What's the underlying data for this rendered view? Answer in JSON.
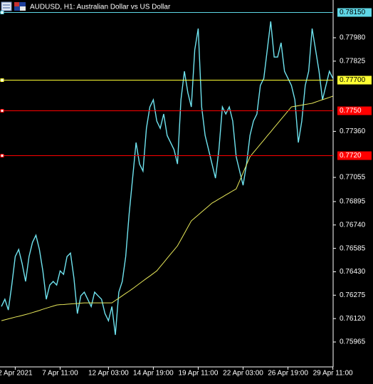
{
  "chart_data": {
    "type": "line",
    "title": "AUDUSD, H1:  Australian Dollar vs US Dollar",
    "categories": [
      null,
      null,
      null,
      null,
      "2 Apr 2021",
      null,
      null,
      null,
      null,
      null,
      null,
      null,
      null,
      null,
      null,
      null,
      null,
      "7 Apr 11:00",
      null,
      null,
      null,
      null,
      null,
      null,
      null,
      null,
      null,
      null,
      null,
      null,
      null,
      "12 Apr 03:00",
      null,
      null,
      null,
      null,
      null,
      null,
      null,
      null,
      null,
      null,
      null,
      null,
      "14 Apr 19:00",
      null,
      null,
      null,
      null,
      null,
      null,
      null,
      null,
      null,
      null,
      null,
      null,
      "19 Apr 11:00",
      null,
      null,
      null,
      null,
      null,
      null,
      null,
      null,
      null,
      null,
      null,
      null,
      "22 Apr 03:00",
      null,
      null,
      null,
      null,
      null,
      null,
      null,
      null,
      null,
      null,
      null,
      null,
      "26 Apr 19:00",
      null,
      null,
      null,
      null,
      null,
      null,
      null,
      null,
      null,
      null,
      null,
      null,
      "29 Apr 11:00"
    ],
    "series": [
      {
        "color": "#6fe3ef",
        "values": [
          0.762,
          0.76248,
          0.76177,
          0.76342,
          0.76531,
          0.76578,
          0.76484,
          0.76366,
          0.76531,
          0.76625,
          0.76672,
          0.76578,
          0.76436,
          0.76248,
          0.76342,
          0.76366,
          0.76342,
          0.76436,
          0.76413,
          0.76531,
          0.76554,
          0.76389,
          0.76153,
          0.76271,
          0.76295,
          0.76248,
          0.762,
          0.76295,
          0.76271,
          0.76248,
          0.76153,
          0.76106,
          0.762,
          0.76012,
          0.76295,
          0.76366,
          0.76531,
          0.76814,
          0.7705,
          0.77286,
          0.77144,
          0.77097,
          0.7738,
          0.77522,
          0.77569,
          0.77428,
          0.7738,
          0.77475,
          0.77333,
          0.77286,
          0.77239,
          0.77144,
          0.77569,
          0.77758,
          0.77616,
          0.77522,
          0.779,
          0.78041,
          0.77522,
          0.77333,
          0.77239,
          0.77144,
          0.7705,
          0.77239,
          0.77522,
          0.77475,
          0.77522,
          0.77428,
          0.77192,
          0.77097,
          0.77003,
          0.77144,
          0.77333,
          0.77428,
          0.77475,
          0.77664,
          0.77711,
          0.779,
          0.78088,
          0.77852,
          0.77852,
          0.77947,
          0.77758,
          0.77711,
          0.77664,
          0.77569,
          0.77286,
          0.77428,
          0.77664,
          0.77758,
          0.78041,
          0.779,
          0.77758,
          0.77569,
          0.77664,
          0.77758,
          0.77711
        ]
      },
      {
        "color": "#e8e85a",
        "values": [
          0.76106,
          0.76112,
          0.76118,
          0.76124,
          0.7613,
          0.76135,
          0.76141,
          0.76147,
          0.76153,
          0.7616,
          0.76167,
          0.76174,
          0.76182,
          0.76189,
          0.76196,
          0.76203,
          0.7621,
          0.76212,
          0.76213,
          0.76215,
          0.76217,
          0.76219,
          0.7622,
          0.76222,
          0.76224,
          0.76224,
          0.76224,
          0.76224,
          0.76224,
          0.76224,
          0.76224,
          0.76224,
          0.76224,
          0.7624,
          0.76255,
          0.76271,
          0.76287,
          0.76302,
          0.76318,
          0.76335,
          0.76352,
          0.76369,
          0.76386,
          0.76402,
          0.76419,
          0.76436,
          0.76464,
          0.76491,
          0.76519,
          0.76547,
          0.76574,
          0.76602,
          0.76643,
          0.76684,
          0.76726,
          0.76767,
          0.76787,
          0.76806,
          0.76826,
          0.76846,
          0.76865,
          0.76885,
          0.76898,
          0.76912,
          0.76925,
          0.76939,
          0.76952,
          0.76966,
          0.76979,
          0.77032,
          0.77086,
          0.77139,
          0.77192,
          0.7722,
          0.77247,
          0.77275,
          0.77302,
          0.7733,
          0.77357,
          0.77385,
          0.77412,
          0.7744,
          0.77467,
          0.77495,
          0.77522,
          0.77526,
          0.7753,
          0.77534,
          0.77538,
          0.77542,
          0.77546,
          0.77554,
          0.77562,
          0.7757,
          0.77577,
          0.77585,
          0.77593
        ]
      }
    ],
    "ylim": [
      0.758,
      0.7823
    ],
    "yticks": [
      {
        "value": 0.75965,
        "label": "0.75965"
      },
      {
        "value": 0.7612,
        "label": "0.76120"
      },
      {
        "value": 0.76275,
        "label": "0.76275"
      },
      {
        "value": 0.7643,
        "label": "0.76430"
      },
      {
        "value": 0.76585,
        "label": "0.76585"
      },
      {
        "value": 0.7674,
        "label": "0.76740"
      },
      {
        "value": 0.76895,
        "label": "0.76895"
      },
      {
        "value": 0.77055,
        "label": "0.77055"
      },
      {
        "value": 0.7736,
        "label": "0.77360"
      },
      {
        "value": 0.77825,
        "label": "0.77825"
      },
      {
        "value": 0.7798,
        "label": "0.77980"
      }
    ],
    "levels": [
      {
        "value": 0.7815,
        "label": "0.78150",
        "color": "#5fd7e6"
      },
      {
        "value": 0.777,
        "label": "0.77700",
        "color": "#ffff33"
      },
      {
        "value": 0.775,
        "label": "0.7750",
        "color": "#ff0000"
      },
      {
        "value": 0.772,
        "label": "0.7720",
        "color": "#ff0000"
      }
    ],
    "grid": false
  }
}
